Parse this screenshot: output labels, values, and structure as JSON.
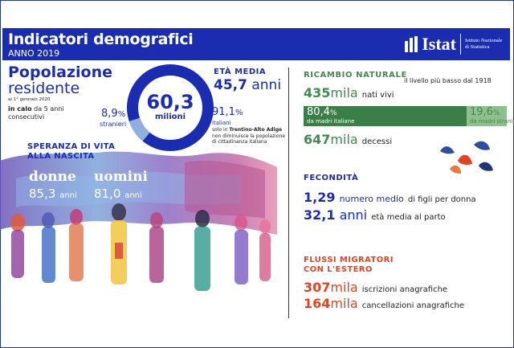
{
  "header": {
    "title": "Indicatori demografici",
    "subtitle": "ANNO 2019"
  },
  "logo": {
    "word": "Istat",
    "small_line1": "Istituto Nazionale",
    "small_line2": "di Statistica",
    "icon": "istat-logo-icon"
  },
  "popolazione": {
    "title_line1": "Popolazione",
    "title_line2": "residente",
    "date": "al 1° gennaio 2020",
    "note_bold": "in calo",
    "note_rest": "da 5 anni",
    "note_line2": "consecutivi",
    "donut_value": "60,3",
    "donut_unit": "milioni",
    "stranieri_value": "8,9",
    "stranieri_pct": "%",
    "stranieri_label": "stranieri",
    "italiani_value": "91,1",
    "italiani_pct": "%",
    "italiani_label": "italiani",
    "foot_pre": "solo in ",
    "foot_bold": "Trentino-Alto Adige",
    "foot_line2": "non diminuisce la popolazione",
    "foot_line3": "di cittadinanza italiana",
    "stranieri_share": 8.9
  },
  "eta_media": {
    "title": "ETÀ MEDIA",
    "value": "45,7",
    "unit": "anni"
  },
  "speranza": {
    "title_line1": "SPERANZA DI VITA",
    "title_line2": "ALLA NASCITA",
    "donne_label": "donne",
    "donne_value": "85,3",
    "donne_unit": "anni",
    "uomini_label": "uomini",
    "uomini_value": "81,0",
    "uomini_unit": "anni"
  },
  "ricambio": {
    "title": "RICAMBIO NATURALE",
    "note": "il livello più basso dal 1918",
    "nati_value": "435",
    "nati_unit": "mila",
    "nati_label": "nati vivi",
    "italiane_value": "80,4",
    "italiane_pct": "%",
    "italiane_label": "da madri italiane",
    "straniere_value": "19,6",
    "straniere_pct": "%",
    "straniere_label": "da madri straniere",
    "decessi_value": "647",
    "decessi_unit": "mila",
    "decessi_label": "decessi",
    "italiane_share": 80.4
  },
  "fecondita": {
    "title": "FECONDITÀ",
    "figli_value": "1,29",
    "figli_label_a": "numero medio",
    "figli_label_b": "di figli per donna",
    "eta_value": "32,1",
    "eta_unit": "anni",
    "eta_label": "età media al parto"
  },
  "flussi": {
    "title_line1": "FLUSSI MIGRATORI",
    "title_line2": "CON L'ESTERO",
    "iscr_value": "307",
    "iscr_unit": "mila",
    "iscr_label": "iscrizioni anagrafiche",
    "canc_value": "164",
    "canc_unit": "mila",
    "canc_label": "cancellazioni anagrafiche"
  },
  "colors": {
    "brand_blue": "#1a2db0",
    "green_dark": "#3a7f47",
    "green_light": "#8ebf8c",
    "accent_red": "#e04420"
  }
}
